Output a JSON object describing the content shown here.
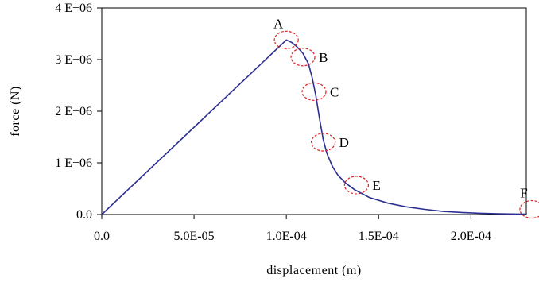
{
  "chart_data": {
    "type": "line",
    "title": "",
    "xlabel": "displacement (m)",
    "ylabel": "force (N)",
    "xlim": [
      0,
      0.00023
    ],
    "ylim": [
      0,
      4000000
    ],
    "x_ticks": [
      0,
      5e-05,
      0.0001,
      0.00015,
      0.0002
    ],
    "x_tick_labels": [
      "0.0",
      "5.0E-05",
      "1.0E-04",
      "1.5E-04",
      "2.0E-04"
    ],
    "y_ticks": [
      0,
      1000000,
      2000000,
      3000000,
      4000000
    ],
    "y_tick_labels": [
      "0.0",
      "1 E+06",
      "2 E+06",
      "3 E+06",
      "4 E+06"
    ],
    "grid": false,
    "series_color": "#2b2f8f",
    "marker_color": "#e02020",
    "series": [
      {
        "x": [
          0,
          0.0001,
          0.000103,
          0.000106,
          0.000109,
          0.000112,
          0.000114,
          0.000116,
          0.000118,
          0.00012,
          0.000122,
          0.000125,
          0.000128,
          0.000132,
          0.000137,
          0.000145,
          0.000155,
          0.000165,
          0.000175,
          0.000185,
          0.000195,
          0.000205,
          0.000215,
          0.000225,
          0.00023
        ],
        "y": [
          0,
          3380000,
          3330000,
          3240000,
          3120000,
          2920000,
          2650000,
          2300000,
          1850000,
          1450000,
          1180000,
          930000,
          760000,
          610000,
          480000,
          330000,
          220000,
          150000,
          100000,
          60000,
          40000,
          25000,
          15000,
          10000,
          8000
        ]
      }
    ],
    "annotations": [
      {
        "label": "A",
        "x": 0.0001,
        "y": 3380000,
        "label_pos": "above"
      },
      {
        "label": "B",
        "x": 0.000109,
        "y": 3050000,
        "label_pos": "right"
      },
      {
        "label": "C",
        "x": 0.000115,
        "y": 2380000,
        "label_pos": "right"
      },
      {
        "label": "D",
        "x": 0.00012,
        "y": 1400000,
        "label_pos": "right"
      },
      {
        "label": "E",
        "x": 0.000138,
        "y": 570000,
        "label_pos": "right"
      },
      {
        "label": "F",
        "x": 0.000233,
        "y": 100000,
        "label_pos": "above"
      }
    ]
  }
}
